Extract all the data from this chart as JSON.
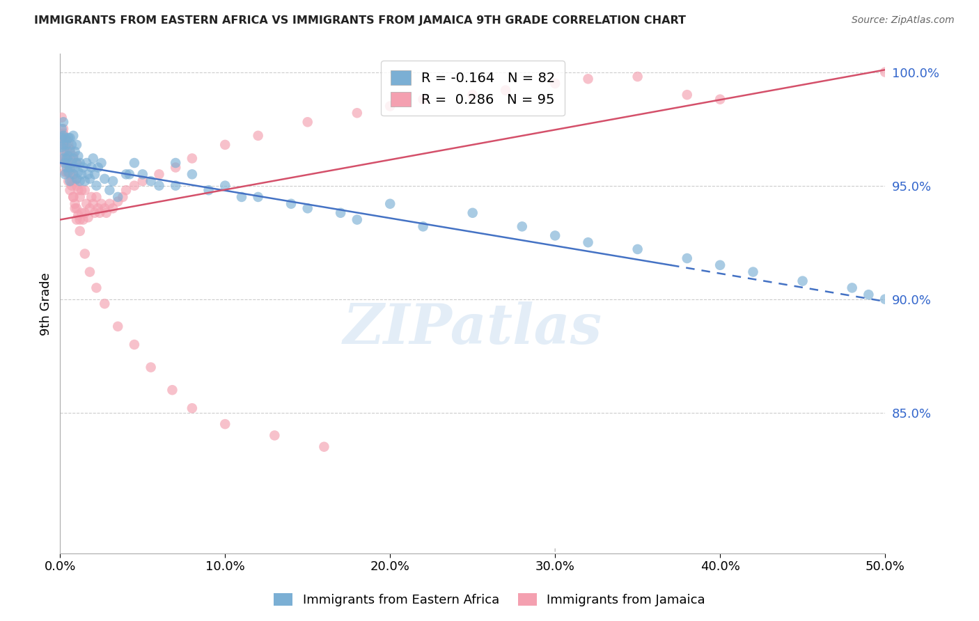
{
  "title": "IMMIGRANTS FROM EASTERN AFRICA VS IMMIGRANTS FROM JAMAICA 9TH GRADE CORRELATION CHART",
  "source": "Source: ZipAtlas.com",
  "ylabel": "9th Grade",
  "x_min": 0.0,
  "x_max": 0.5,
  "y_min": 0.788,
  "y_max": 1.008,
  "yticks": [
    0.85,
    0.9,
    0.95,
    1.0
  ],
  "ytick_labels": [
    "85.0%",
    "90.0%",
    "95.0%",
    "100.0%"
  ],
  "xticks": [
    0.0,
    0.1,
    0.2,
    0.3,
    0.4,
    0.5
  ],
  "xtick_labels": [
    "0.0%",
    "10.0%",
    "20.0%",
    "30.0%",
    "40.0%",
    "50.0%"
  ],
  "blue_R": -0.164,
  "blue_N": 82,
  "pink_R": 0.286,
  "pink_N": 95,
  "blue_color": "#7BAFD4",
  "pink_color": "#F4A0B0",
  "blue_line_color": "#4472C4",
  "pink_line_color": "#D4506A",
  "legend_label_blue": "Immigrants from Eastern Africa",
  "legend_label_pink": "Immigrants from Jamaica",
  "watermark": "ZIPatlas",
  "blue_trend_x0": 0.0,
  "blue_trend_y0": 0.96,
  "blue_trend_x1": 0.37,
  "blue_trend_y1": 0.915,
  "blue_trend_x2": 0.5,
  "blue_trend_y2": 0.899,
  "pink_trend_x0": 0.0,
  "pink_trend_y0": 0.935,
  "pink_trend_x1": 0.5,
  "pink_trend_y1": 1.001,
  "blue_scatter_x": [
    0.001,
    0.001,
    0.001,
    0.002,
    0.002,
    0.002,
    0.002,
    0.003,
    0.003,
    0.003,
    0.003,
    0.004,
    0.004,
    0.004,
    0.005,
    0.005,
    0.005,
    0.006,
    0.006,
    0.006,
    0.006,
    0.007,
    0.007,
    0.008,
    0.008,
    0.008,
    0.009,
    0.009,
    0.01,
    0.01,
    0.01,
    0.011,
    0.011,
    0.012,
    0.012,
    0.013,
    0.014,
    0.015,
    0.016,
    0.017,
    0.018,
    0.019,
    0.02,
    0.021,
    0.022,
    0.023,
    0.025,
    0.027,
    0.03,
    0.032,
    0.035,
    0.04,
    0.045,
    0.05,
    0.06,
    0.07,
    0.08,
    0.1,
    0.12,
    0.15,
    0.18,
    0.2,
    0.25,
    0.28,
    0.3,
    0.35,
    0.38,
    0.4,
    0.42,
    0.45,
    0.48,
    0.49,
    0.5,
    0.32,
    0.22,
    0.17,
    0.14,
    0.11,
    0.09,
    0.07,
    0.055,
    0.042
  ],
  "blue_scatter_y": [
    0.975,
    0.971,
    0.967,
    0.978,
    0.968,
    0.962,
    0.972,
    0.965,
    0.971,
    0.96,
    0.955,
    0.962,
    0.958,
    0.968,
    0.956,
    0.963,
    0.971,
    0.958,
    0.965,
    0.971,
    0.952,
    0.96,
    0.968,
    0.955,
    0.962,
    0.972,
    0.958,
    0.965,
    0.953,
    0.96,
    0.968,
    0.956,
    0.963,
    0.952,
    0.96,
    0.955,
    0.958,
    0.952,
    0.96,
    0.955,
    0.953,
    0.958,
    0.962,
    0.955,
    0.95,
    0.958,
    0.96,
    0.953,
    0.948,
    0.952,
    0.945,
    0.955,
    0.96,
    0.955,
    0.95,
    0.96,
    0.955,
    0.95,
    0.945,
    0.94,
    0.935,
    0.942,
    0.938,
    0.932,
    0.928,
    0.922,
    0.918,
    0.915,
    0.912,
    0.908,
    0.905,
    0.902,
    0.9,
    0.925,
    0.932,
    0.938,
    0.942,
    0.945,
    0.948,
    0.95,
    0.952,
    0.955
  ],
  "pink_scatter_x": [
    0.001,
    0.001,
    0.001,
    0.002,
    0.002,
    0.002,
    0.003,
    0.003,
    0.003,
    0.004,
    0.004,
    0.004,
    0.005,
    0.005,
    0.005,
    0.006,
    0.006,
    0.006,
    0.007,
    0.007,
    0.008,
    0.008,
    0.008,
    0.009,
    0.009,
    0.01,
    0.01,
    0.01,
    0.011,
    0.011,
    0.012,
    0.012,
    0.013,
    0.013,
    0.014,
    0.015,
    0.015,
    0.016,
    0.017,
    0.018,
    0.019,
    0.02,
    0.021,
    0.022,
    0.023,
    0.024,
    0.025,
    0.027,
    0.028,
    0.03,
    0.032,
    0.035,
    0.038,
    0.04,
    0.045,
    0.05,
    0.06,
    0.07,
    0.08,
    0.1,
    0.12,
    0.15,
    0.18,
    0.2,
    0.22,
    0.25,
    0.27,
    0.3,
    0.32,
    0.35,
    0.38,
    0.4,
    0.002,
    0.003,
    0.004,
    0.005,
    0.006,
    0.007,
    0.008,
    0.009,
    0.01,
    0.012,
    0.015,
    0.018,
    0.022,
    0.027,
    0.035,
    0.045,
    0.055,
    0.068,
    0.08,
    0.1,
    0.13,
    0.16,
    0.5
  ],
  "pink_scatter_y": [
    0.98,
    0.972,
    0.963,
    0.973,
    0.96,
    0.968,
    0.962,
    0.956,
    0.967,
    0.956,
    0.963,
    0.97,
    0.952,
    0.96,
    0.968,
    0.948,
    0.958,
    0.966,
    0.952,
    0.961,
    0.945,
    0.955,
    0.963,
    0.942,
    0.952,
    0.94,
    0.95,
    0.96,
    0.937,
    0.948,
    0.935,
    0.945,
    0.938,
    0.948,
    0.935,
    0.938,
    0.948,
    0.942,
    0.936,
    0.94,
    0.945,
    0.942,
    0.938,
    0.945,
    0.94,
    0.938,
    0.942,
    0.94,
    0.938,
    0.942,
    0.94,
    0.943,
    0.945,
    0.948,
    0.95,
    0.952,
    0.955,
    0.958,
    0.962,
    0.968,
    0.972,
    0.978,
    0.982,
    0.985,
    0.988,
    0.99,
    0.992,
    0.995,
    0.997,
    0.998,
    0.99,
    0.988,
    0.975,
    0.97,
    0.965,
    0.96,
    0.955,
    0.95,
    0.945,
    0.94,
    0.935,
    0.93,
    0.92,
    0.912,
    0.905,
    0.898,
    0.888,
    0.88,
    0.87,
    0.86,
    0.852,
    0.845,
    0.84,
    0.835,
    1.0
  ]
}
